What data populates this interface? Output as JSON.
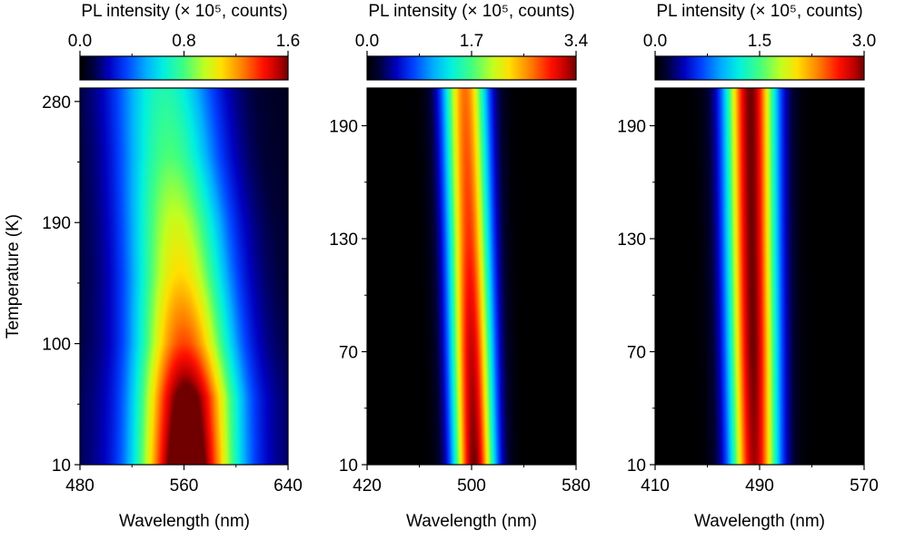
{
  "chart_data": [
    {
      "type": "heatmap",
      "colorbar_title": "PL intensity (× 10⁵, counts)",
      "colorbar_ticks": [
        "0.0",
        "0.8",
        "1.6"
      ],
      "colorbar_range": [
        0.0,
        1.6
      ],
      "xlabel": "Wavelength (nm)",
      "ylabel": "Temperature (K)",
      "xlim": [
        480,
        640
      ],
      "ylim": [
        10,
        290
      ],
      "xticks": [
        "480",
        "560",
        "640"
      ],
      "yticks": [
        "10",
        "100",
        "190",
        "280"
      ],
      "peak": [
        {
          "temperature": 10,
          "wavelength": 562,
          "intensity": 1.6
        },
        {
          "temperature": 60,
          "wavelength": 562,
          "intensity": 1.45
        },
        {
          "temperature": 100,
          "wavelength": 560,
          "intensity": 1.15
        },
        {
          "temperature": 150,
          "wavelength": 557,
          "intensity": 0.95
        },
        {
          "temperature": 190,
          "wavelength": 554,
          "intensity": 0.85
        },
        {
          "temperature": 240,
          "wavelength": 549,
          "intensity": 0.7
        },
        {
          "temperature": 290,
          "wavelength": 545,
          "intensity": 0.62
        }
      ],
      "fwhm_nm": [
        {
          "temperature": 10,
          "value": 58
        },
        {
          "temperature": 150,
          "value": 62
        },
        {
          "temperature": 290,
          "value": 66
        }
      ]
    },
    {
      "type": "heatmap",
      "colorbar_title": "PL intensity (× 10⁵, counts)",
      "colorbar_ticks": [
        "0.0",
        "1.7",
        "3.4"
      ],
      "colorbar_range": [
        0.0,
        3.4
      ],
      "xlabel": "Wavelength (nm)",
      "ylabel": "",
      "xlim": [
        420,
        580
      ],
      "ylim": [
        10,
        210
      ],
      "xticks": [
        "420",
        "500",
        "580"
      ],
      "yticks": [
        "10",
        "70",
        "130",
        "190"
      ],
      "peak": [
        {
          "temperature": 10,
          "wavelength": 502,
          "intensity": 3.4
        },
        {
          "temperature": 70,
          "wavelength": 500,
          "intensity": 3.2
        },
        {
          "temperature": 130,
          "wavelength": 498,
          "intensity": 2.9
        },
        {
          "temperature": 210,
          "wavelength": 495,
          "intensity": 2.7
        }
      ],
      "fwhm_nm": [
        {
          "temperature": 10,
          "value": 26
        },
        {
          "temperature": 210,
          "value": 28
        }
      ]
    },
    {
      "type": "heatmap",
      "colorbar_title": "PL intensity (× 10⁵, counts)",
      "colorbar_ticks": [
        "0.0",
        "1.5",
        "3.0"
      ],
      "colorbar_range": [
        0.0,
        3.0
      ],
      "xlabel": "Wavelength (nm)",
      "ylabel": "",
      "xlim": [
        410,
        570
      ],
      "ylim": [
        10,
        210
      ],
      "xticks": [
        "410",
        "490",
        "570"
      ],
      "yticks": [
        "10",
        "70",
        "130",
        "190"
      ],
      "peak": [
        {
          "temperature": 10,
          "wavelength": 486,
          "intensity": 2.9
        },
        {
          "temperature": 70,
          "wavelength": 485,
          "intensity": 3.0
        },
        {
          "temperature": 130,
          "wavelength": 484,
          "intensity": 3.0
        },
        {
          "temperature": 210,
          "wavelength": 483,
          "intensity": 3.0
        }
      ],
      "fwhm_nm": [
        {
          "temperature": 10,
          "value": 30
        },
        {
          "temperature": 210,
          "value": 32
        }
      ]
    }
  ]
}
